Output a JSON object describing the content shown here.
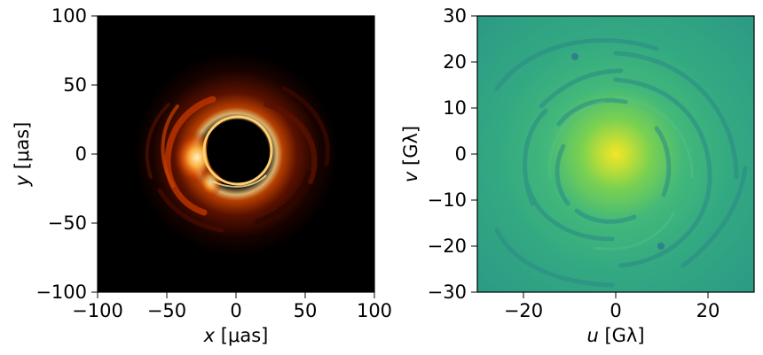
{
  "chart_data": [
    {
      "type": "heatmap",
      "description_of_content": "",
      "colormap": "afmhot",
      "background_color": "#000000",
      "xlim": [
        -100,
        100
      ],
      "ylim": [
        -100,
        100
      ],
      "xticks": [
        -100,
        -50,
        0,
        50,
        100
      ],
      "yticks": [
        -100,
        -50,
        0,
        50,
        100
      ],
      "xtick_labels": [
        "−100",
        "−50",
        "0",
        "50",
        "100"
      ],
      "ytick_labels": [
        "−100",
        "−50",
        "0",
        "50",
        "100"
      ],
      "xlabel": {
        "var": "x",
        "unit": " [μas]"
      },
      "ylabel": {
        "var": "y",
        "unit": " [μas]"
      },
      "grid": false
    },
    {
      "type": "heatmap",
      "colormap": "viridis",
      "xlim": [
        -30,
        30
      ],
      "ylim": [
        -30,
        30
      ],
      "xticks": [
        -20,
        0,
        20
      ],
      "yticks": [
        -30,
        -20,
        -10,
        0,
        10,
        20,
        30
      ],
      "xtick_labels": [
        "−20",
        "0",
        "20"
      ],
      "ytick_labels": [
        "−30",
        "−20",
        "−10",
        "0",
        "10",
        "20",
        "30"
      ],
      "xlabel": {
        "var": "u",
        "unit": " [Gλ]"
      },
      "ylabel": {
        "var": "v",
        "unit": " [Gλ]"
      },
      "grid": false
    }
  ]
}
